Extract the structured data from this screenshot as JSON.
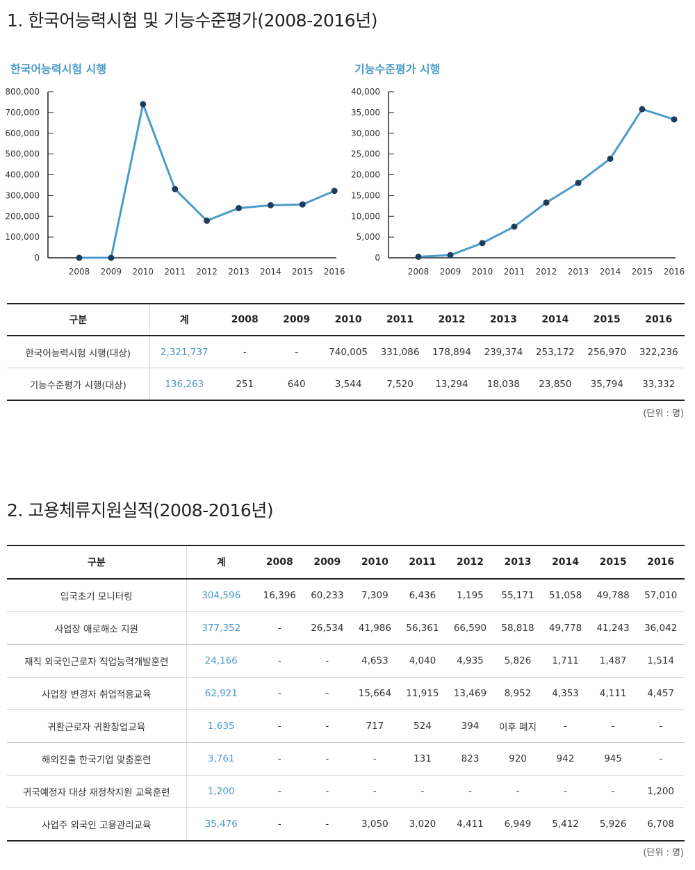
{
  "section1": {
    "title": "1. 한국어능력시험 및 기능수준평가(2008-2016년)",
    "unit_note": "(단위 : 명)"
  },
  "section2": {
    "title": "2. 고용체류지원실적(2008-2016년)",
    "unit_note": "(단위 : 명)"
  },
  "colors": {
    "accent": "#4a9bc9",
    "dot": "#1e3d5c",
    "rule": "#222222"
  },
  "chart_data": [
    {
      "type": "line",
      "title": "한국어능력시험 시행",
      "x": [
        "2008",
        "2009",
        "2010",
        "2011",
        "2012",
        "2013",
        "2014",
        "2015",
        "2016"
      ],
      "values": [
        0,
        0,
        740005,
        331086,
        178894,
        239374,
        253172,
        256970,
        322236
      ],
      "ylim": [
        0,
        800000
      ],
      "yticks": [
        0,
        100000,
        200000,
        300000,
        400000,
        500000,
        600000,
        700000,
        800000
      ],
      "xlabel": "",
      "ylabel": "",
      "grid": false
    },
    {
      "type": "line",
      "title": "기능수준평가 시행",
      "x": [
        "2008",
        "2009",
        "2010",
        "2011",
        "2012",
        "2013",
        "2014",
        "2015",
        "2016"
      ],
      "values": [
        251,
        640,
        3544,
        7520,
        13294,
        18038,
        23850,
        35794,
        33332
      ],
      "ylim": [
        0,
        40000
      ],
      "yticks": [
        0,
        5000,
        10000,
        15000,
        20000,
        25000,
        30000,
        35000,
        40000
      ],
      "xlabel": "",
      "ylabel": "",
      "grid": false
    }
  ],
  "table1": {
    "headers": [
      "구분",
      "계",
      "2008",
      "2009",
      "2010",
      "2011",
      "2012",
      "2013",
      "2014",
      "2015",
      "2016"
    ],
    "rows": [
      [
        "한국어능력시험 시행(대상)",
        "2,321,737",
        "-",
        "-",
        "740,005",
        "331,086",
        "178,894",
        "239,374",
        "253,172",
        "256,970",
        "322,236"
      ],
      [
        "기능수준평가 시행(대상)",
        "136,263",
        "251",
        "640",
        "3,544",
        "7,520",
        "13,294",
        "18,038",
        "23,850",
        "35,794",
        "33,332"
      ]
    ]
  },
  "table2": {
    "headers": [
      "구분",
      "계",
      "2008",
      "2009",
      "2010",
      "2011",
      "2012",
      "2013",
      "2014",
      "2015",
      "2016"
    ],
    "rows": [
      [
        "입국초기 모니터링",
        "304,596",
        "16,396",
        "60,233",
        "7,309",
        "6,436",
        "1,195",
        "55,171",
        "51,058",
        "49,788",
        "57,010"
      ],
      [
        "사업장 애로해소 지원",
        "377,352",
        "-",
        "26,534",
        "41,986",
        "56,361",
        "66,590",
        "58,818",
        "49,778",
        "41,243",
        "36,042"
      ],
      [
        "재직 외국인근로자 직업능력개발훈련",
        "24,166",
        "-",
        "-",
        "4,653",
        "4,040",
        "4,935",
        "5,826",
        "1,711",
        "1,487",
        "1,514"
      ],
      [
        "사업장 변경자 취업적응교육",
        "62,921",
        "-",
        "-",
        "15,664",
        "11,915",
        "13,469",
        "8,952",
        "4,353",
        "4,111",
        "4,457"
      ],
      [
        "귀환근로자 귀환창업교육",
        "1,635",
        "-",
        "-",
        "717",
        "524",
        "394",
        "이후 폐지",
        "-",
        "-",
        "-"
      ],
      [
        "해외진출 한국기업 맞춤훈련",
        "3,761",
        "-",
        "-",
        "-",
        "131",
        "823",
        "920",
        "942",
        "945",
        "-"
      ],
      [
        "귀국예정자 대상 재정착지원 교육훈련",
        "1,200",
        "-",
        "-",
        "-",
        "-",
        "-",
        "-",
        "-",
        "-",
        "1,200"
      ],
      [
        "사업주 외국인 고용관리교육",
        "35,476",
        "-",
        "-",
        "3,050",
        "3,020",
        "4,411",
        "6,949",
        "5,412",
        "5,926",
        "6,708"
      ]
    ]
  }
}
